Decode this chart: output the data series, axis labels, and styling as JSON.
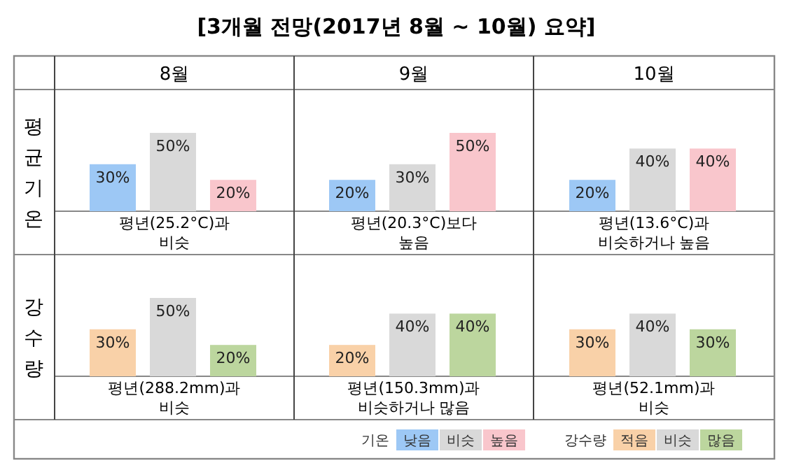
{
  "chart_data": [
    {
      "type": "bar",
      "title": "[3개월  전망(2017년  8월 ~ 10월)  요약]",
      "subtitle": "8월",
      "ylabel": "평균기온",
      "xlabel": "평년(25.2°C)과\n비슷",
      "categories": [
        null,
        null,
        null
      ],
      "values": [
        30,
        50,
        20
      ],
      "value_labels": [
        "30%",
        "50%",
        "20%"
      ],
      "colors": [
        "#9dc8f5",
        "#d9d9d9",
        "#f9c6cc"
      ]
    },
    {
      "type": "bar",
      "subtitle": "9월",
      "xlabel": "평년(20.3°C)보다\n높음",
      "categories": [
        null,
        null,
        null
      ],
      "values": [
        20,
        30,
        50
      ],
      "value_labels": [
        "20%",
        "30%",
        "50%"
      ],
      "colors": [
        "#9dc8f5",
        "#d9d9d9",
        "#f9c6cc"
      ]
    },
    {
      "type": "bar",
      "subtitle": "10월",
      "xlabel": "평년(13.6°C)과\n비슷하거나 높음",
      "categories": [
        null,
        null,
        null
      ],
      "values": [
        20,
        40,
        40
      ],
      "value_labels": [
        "20%",
        "40%",
        "40%"
      ],
      "colors": [
        "#9dc8f5",
        "#d9d9d9",
        "#f9c6cc"
      ]
    },
    {
      "type": "bar",
      "ylabel": "강수량",
      "xlabel": "평년(288.2mm)과\n비슷",
      "categories": [
        null,
        null,
        null
      ],
      "values": [
        30,
        50,
        20
      ],
      "value_labels": [
        "30%",
        "50%",
        "20%"
      ],
      "colors": [
        "#f9d1a8",
        "#d9d9d9",
        "#bcd69e"
      ]
    },
    {
      "type": "bar",
      "xlabel": "평년(150.3mm)과\n비슷하거나 많음",
      "categories": [
        null,
        null,
        null
      ],
      "values": [
        20,
        40,
        40
      ],
      "value_labels": [
        "20%",
        "40%",
        "40%"
      ],
      "colors": [
        "#f9d1a8",
        "#d9d9d9",
        "#bcd69e"
      ]
    },
    {
      "type": "bar",
      "xlabel": "평년(52.1mm)과\n비슷",
      "categories": [
        null,
        null,
        null
      ],
      "values": [
        30,
        40,
        30
      ],
      "value_labels": [
        "30%",
        "40%",
        "30%"
      ],
      "colors": [
        "#f9d1a8",
        "#d9d9d9",
        "#bcd69e"
      ]
    },
    {
      "type": "other",
      "legend_title": "기온",
      "categories": [
        "낮음",
        "비슷",
        "높음"
      ],
      "colors": [
        "#9dc8f5",
        "#d9d9d9",
        "#f9c6cc"
      ]
    },
    {
      "type": "other",
      "legend_title": "강수량",
      "categories": [
        "적음",
        "비슷",
        "많음"
      ],
      "colors": [
        "#f9d1a8",
        "#d9d9d9",
        "#bcd69e"
      ]
    }
  ]
}
